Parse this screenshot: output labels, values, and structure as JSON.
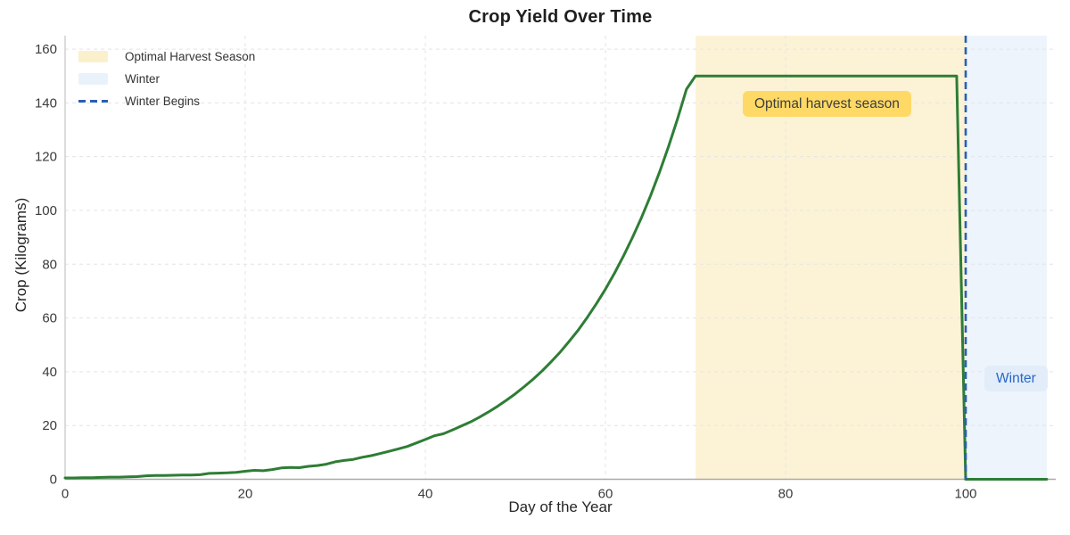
{
  "chart_data": {
    "type": "line",
    "title": "Crop Yield Over Time",
    "xlabel": "Day of the Year",
    "ylabel": "Crop (Kilograms)",
    "xlim": [
      0,
      110
    ],
    "ylim": [
      0,
      165
    ],
    "xticks": [
      0,
      20,
      40,
      60,
      80,
      100
    ],
    "yticks": [
      0,
      20,
      40,
      60,
      80,
      100,
      120,
      140,
      160
    ],
    "grid": true,
    "grid_style": "dashed",
    "legend_position": "upper-left",
    "series": [
      {
        "name": "Crop Yield",
        "color": "#2e7d35",
        "x": [
          0,
          1,
          2,
          3,
          4,
          5,
          6,
          7,
          8,
          9,
          10,
          11,
          12,
          13,
          14,
          15,
          16,
          17,
          18,
          19,
          20,
          21,
          22,
          23,
          24,
          25,
          26,
          27,
          28,
          29,
          30,
          31,
          32,
          33,
          34,
          35,
          36,
          37,
          38,
          39,
          40,
          41,
          42,
          43,
          44,
          45,
          46,
          47,
          48,
          49,
          50,
          51,
          52,
          53,
          54,
          55,
          56,
          57,
          58,
          59,
          60,
          61,
          62,
          63,
          64,
          65,
          66,
          67,
          68,
          69,
          70,
          71,
          72,
          73,
          74,
          75,
          76,
          77,
          78,
          79,
          80,
          81,
          82,
          83,
          84,
          85,
          86,
          87,
          88,
          89,
          90,
          91,
          92,
          93,
          94,
          95,
          96,
          97,
          98,
          99,
          100,
          101,
          102,
          103,
          104,
          105,
          106,
          107,
          108,
          109
        ],
        "y": [
          0.5,
          0.5,
          0.6,
          0.6,
          0.7,
          0.8,
          0.8,
          0.9,
          1.0,
          1.3,
          1.4,
          1.4,
          1.5,
          1.6,
          1.6,
          1.7,
          2.2,
          2.3,
          2.4,
          2.6,
          3.0,
          3.3,
          3.2,
          3.6,
          4.2,
          4.4,
          4.3,
          4.8,
          5.1,
          5.6,
          6.5,
          7.0,
          7.4,
          8.2,
          8.8,
          9.6,
          10.4,
          11.3,
          12.2,
          13.5,
          14.8,
          16.2,
          16.9,
          18.3,
          19.8,
          21.3,
          23.1,
          25.0,
          27.1,
          29.4,
          31.8,
          34.5,
          37.3,
          40.4,
          43.8,
          47.4,
          51.4,
          55.6,
          60.3,
          65.3,
          70.7,
          76.6,
          83.0,
          89.9,
          97.3,
          105.4,
          114.2,
          123.7,
          134.0,
          145.1,
          150,
          150,
          150,
          150,
          150,
          150,
          150,
          150,
          150,
          150,
          150,
          150,
          150,
          150,
          150,
          150,
          150,
          150,
          150,
          150,
          150,
          150,
          150,
          150,
          150,
          150,
          150,
          150,
          150,
          150,
          0,
          0,
          0,
          0,
          0,
          0,
          0,
          0,
          0,
          0
        ]
      }
    ],
    "regions": [
      {
        "name": "Optimal Harvest Season",
        "from": 70,
        "to": 100,
        "color": "#fcf3d6"
      },
      {
        "name": "Winter",
        "from": 100,
        "to": 109,
        "color": "#edf4fb"
      }
    ],
    "vlines": [
      {
        "name": "Winter Begins",
        "x": 100,
        "color": "#2a5fb5",
        "style": "dashed"
      }
    ],
    "legend": [
      {
        "label": "Optimal Harvest Season",
        "swatch": "patch",
        "color": "#faf0cc"
      },
      {
        "label": "Winter",
        "swatch": "patch",
        "color": "#e9f2fb"
      },
      {
        "label": "Winter Begins",
        "swatch": "dash",
        "color": "#2a5fb5"
      }
    ],
    "annotations": [
      {
        "text": "Optimal harvest season",
        "box_color": "#ffd966",
        "text_color": "#3d3d3d",
        "at_day": 85,
        "at_value": 139
      },
      {
        "text": "Winter",
        "box_color": "#e2edf9",
        "text_color": "#2767c8",
        "at_day": 105,
        "at_value": 37
      }
    ]
  }
}
